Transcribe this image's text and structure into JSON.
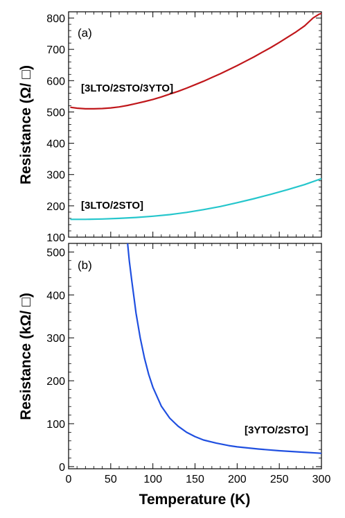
{
  "chart_data": [
    {
      "type": "line",
      "panel_label": "(a)",
      "ylabel": "Resistance (Ω/ □)",
      "xlim": [
        0,
        300
      ],
      "ylim": [
        100,
        820
      ],
      "yticks": [
        100,
        200,
        300,
        400,
        500,
        600,
        700,
        800
      ],
      "series": [
        {
          "label": "[3LTO/2STO/3YTO]",
          "color": "#c0171b",
          "points": [
            [
              2,
              515
            ],
            [
              10,
              512
            ],
            [
              20,
              510
            ],
            [
              30,
              510
            ],
            [
              40,
              511
            ],
            [
              50,
              513
            ],
            [
              60,
              516
            ],
            [
              70,
              521
            ],
            [
              80,
              527
            ],
            [
              90,
              533
            ],
            [
              100,
              540
            ],
            [
              110,
              548
            ],
            [
              120,
              557
            ],
            [
              130,
              566
            ],
            [
              140,
              576
            ],
            [
              150,
              587
            ],
            [
              160,
              598
            ],
            [
              170,
              610
            ],
            [
              180,
              622
            ],
            [
              190,
              635
            ],
            [
              200,
              648
            ],
            [
              210,
              662
            ],
            [
              220,
              676
            ],
            [
              230,
              691
            ],
            [
              240,
              706
            ],
            [
              250,
              722
            ],
            [
              260,
              739
            ],
            [
              270,
              756
            ],
            [
              280,
              775
            ],
            [
              290,
              800
            ],
            [
              297,
              812
            ],
            [
              300,
              815
            ]
          ]
        },
        {
          "label": "[3LTO/2STO]",
          "color": "#25c6cc",
          "points": [
            [
              2,
              157
            ],
            [
              20,
              157
            ],
            [
              40,
              158
            ],
            [
              60,
              160
            ],
            [
              80,
              163
            ],
            [
              100,
              167
            ],
            [
              120,
              172
            ],
            [
              140,
              179
            ],
            [
              160,
              188
            ],
            [
              180,
              198
            ],
            [
              200,
              210
            ],
            [
              220,
              223
            ],
            [
              240,
              237
            ],
            [
              260,
              252
            ],
            [
              280,
              268
            ],
            [
              300,
              287
            ]
          ]
        }
      ]
    },
    {
      "type": "line",
      "panel_label": "(b)",
      "ylabel": "Resistance (kΩ/ □)",
      "xlabel": "Temperature (K)",
      "xlim": [
        0,
        300
      ],
      "ylim": [
        -5,
        520
      ],
      "xticks": [
        0,
        50,
        100,
        150,
        200,
        250,
        300
      ],
      "yticks": [
        0,
        100,
        200,
        300,
        400,
        500
      ],
      "series": [
        {
          "label": "[3YTO/2STO]",
          "color": "#1f4fe0",
          "points": [
            [
              70,
              520
            ],
            [
              72,
              480
            ],
            [
              75,
              432
            ],
            [
              78,
              388
            ],
            [
              80,
              358
            ],
            [
              85,
              300
            ],
            [
              90,
              253
            ],
            [
              95,
              215
            ],
            [
              100,
              185
            ],
            [
              110,
              141
            ],
            [
              120,
              113
            ],
            [
              130,
              94
            ],
            [
              140,
              80
            ],
            [
              150,
              70
            ],
            [
              160,
              62
            ],
            [
              175,
              55
            ],
            [
              190,
              49
            ],
            [
              200,
              46
            ],
            [
              225,
              41
            ],
            [
              250,
              37
            ],
            [
              275,
              34
            ],
            [
              300,
              31
            ]
          ]
        }
      ]
    }
  ]
}
